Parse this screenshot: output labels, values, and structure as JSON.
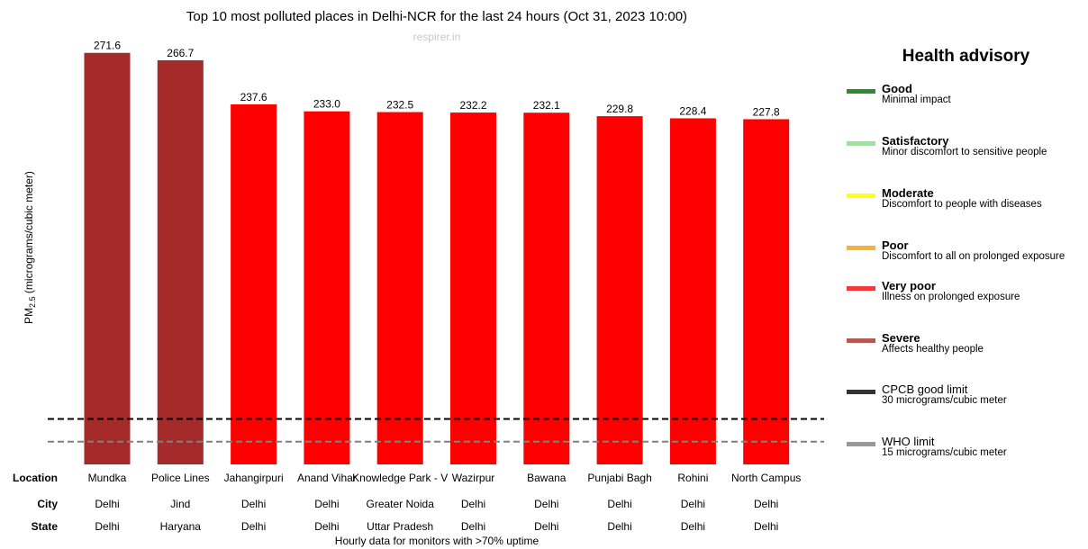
{
  "chart_data": {
    "type": "bar",
    "title": "Top 10 most polluted places in Delhi-NCR for the last 24 hours (Oct 31, 2023 10:00)",
    "subtitle": "respirer.in",
    "ylabel": {
      "base": "PM",
      "sub": "2.5",
      "rest": " (micrograms/cubic meter)"
    },
    "categories": [
      "Mundka",
      "Police Lines",
      "Jahangirpuri",
      "Anand Vihar",
      "Knowledge Park - V",
      "Wazirpur",
      "Bawana",
      "Punjabi Bagh",
      "Rohini",
      "North Campus"
    ],
    "values": [
      271.6,
      266.7,
      237.6,
      233.0,
      232.5,
      232.2,
      232.1,
      229.8,
      228.4,
      227.8
    ],
    "value_labels": [
      "271.6",
      "266.7",
      "237.6",
      "233.0",
      "232.5",
      "232.2",
      "232.1",
      "229.8",
      "228.4",
      "227.8"
    ],
    "bar_colors": [
      "#a52a2a",
      "#a52a2a",
      "#ff0000",
      "#ff0000",
      "#ff0000",
      "#ff0000",
      "#ff0000",
      "#ff0000",
      "#ff0000",
      "#ff0000"
    ],
    "ylim": [
      0,
      275
    ],
    "grid": false,
    "reference_lines": [
      {
        "value": 30,
        "color": "#000000",
        "style": "dashed"
      },
      {
        "value": 15,
        "color": "#808080",
        "style": "dashed"
      }
    ],
    "table": {
      "row_labels": [
        "Location",
        "City",
        "State"
      ],
      "location": [
        "Mundka",
        "Police Lines",
        "Jahangirpuri",
        "Anand Vihar",
        "Knowledge Park - V",
        "Wazirpur",
        "Bawana",
        "Punjabi Bagh",
        "Rohini",
        "North Campus"
      ],
      "city": [
        "Delhi",
        "Jind",
        "Delhi",
        "Delhi",
        "Greater Noida",
        "Delhi",
        "Delhi",
        "Delhi",
        "Delhi",
        "Delhi"
      ],
      "state": [
        "Delhi",
        "Haryana",
        "Delhi",
        "Delhi",
        "Uttar Pradesh",
        "Delhi",
        "Delhi",
        "Delhi",
        "Delhi",
        "Delhi"
      ]
    },
    "footnote": "Hourly data for monitors with >70% uptime"
  },
  "advisory": {
    "title": "Health advisory",
    "items": [
      {
        "name": "Good",
        "desc": "Minimal impact",
        "color": "#2e8b2e",
        "bold": true
      },
      {
        "name": "Satisfactory",
        "desc": "Minor discomfort to sensitive people",
        "color": "#98e698",
        "bold": true
      },
      {
        "name": "Moderate",
        "desc": "Discomfort to people with diseases",
        "color": "#ffff1a",
        "bold": true
      },
      {
        "name": "Poor",
        "desc": "Discomfort to all on prolonged exposure",
        "color": "#f9b233",
        "bold": true
      },
      {
        "name": "Very poor",
        "desc": "Illness on prolonged exposure",
        "color": "#f23a3a",
        "bold": true
      },
      {
        "name": "Severe",
        "desc": "Affects healthy people",
        "color": "#b45a52",
        "bold": true
      },
      {
        "name": "CPCB good limit",
        "desc": "30 micrograms/cubic meter",
        "color": "#333333",
        "bold": false
      },
      {
        "name": "WHO limit",
        "desc": "15 micrograms/cubic meter",
        "color": "#999999",
        "bold": false
      }
    ]
  }
}
